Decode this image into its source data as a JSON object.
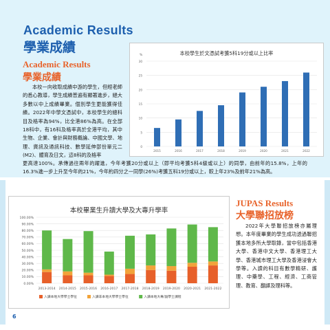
{
  "header": {
    "title_en": "Academic Results",
    "title_zh": "學業成績"
  },
  "academic": {
    "heading_en": "Academic Results",
    "heading_zh": "學業成績",
    "paragraph_top": "本校一向收取成績中游的學生，但經老師的悉心教導，學生成績普遍有顯著進步，絕大多數以中上成績畢業。個別學生更能獲得佳績。2022年中學文憑試中，本校學生的總科目及格率為94%，比全港86%為高。在全部18科中，有16科及格率高於全港平均，其中生物、企業、會計與財務概論、中國文學、地理、資訊及通訊科技、數學延伸部份單元二(M2)、體育及日文，這8科的及格率",
    "paragraph_bottom": "更高達100%。承傳過往兩年的躍進，今年考獲20分或以上（即平均考獲5科4級或以上）的同學，由前年的15.8%，上年的16.3%進一步上升至今年的21%，今年約四分之一同學(26%)考獲五科19分或以上，較上年23%及前年21%為高。"
  },
  "jupas": {
    "heading_en": "JUPAS Results",
    "heading_zh": "大學聯招放榜",
    "paragraph": "2022年大學聯招放榜亦屬理想。本年度畢業的學生成功透過聯招獲本地多所大學取錄，當中包括香港大學、香港中文大學、香港理工大學、香港城市理工大學及香港浸會大學等。入讀的科目有數學精研、護理、中藥學、工程、經濟、工商管理、教育、翻譯及理科等。"
  },
  "page_number": "6",
  "colors": {
    "brand_blue": "#1d5fae",
    "accent_orange": "#e8632b",
    "bar_blue": "#2f6eb5",
    "seg_red": "#e7602a",
    "seg_orange": "#f2a33a",
    "seg_green": "#5fb84a"
  },
  "chart_data": [
    {
      "type": "bar",
      "title": "本校學生於文憑試考獲5科19分或以上比率",
      "ylabel_unit": "%",
      "categories": [
        "2015",
        "2016",
        "2017",
        "2018",
        "2019",
        "2020",
        "2021",
        "2022"
      ],
      "values": [
        6.5,
        9.5,
        12.5,
        14.5,
        19,
        21,
        23,
        26
      ],
      "ylim": [
        0,
        30
      ],
      "yticks": [
        "0",
        "5",
        "10",
        "15",
        "20",
        "25",
        "30"
      ],
      "grid": true
    },
    {
      "type": "bar",
      "stacked": true,
      "title": "本校畢業生升讀大學及大專升學率",
      "categories": [
        "2013-2014",
        "2014-2015",
        "2015-2016",
        "2016-2017",
        "2017-2018",
        "2018-2019",
        "2019-2020",
        "2020-2021",
        "2021-2022"
      ],
      "ylim": [
        0,
        100
      ],
      "yticks": [
        "0.00%",
        "10.00%",
        "20.00%",
        "30.00%",
        "40.00%",
        "50.00%",
        "60.00%",
        "70.00%",
        "80.00%",
        "90.00%",
        "100.00%"
      ],
      "series": [
        {
          "name": "入讀本地大學學士學位",
          "color": "#e7602a",
          "values": [
            17,
            12,
            12,
            11,
            14,
            20,
            19,
            25,
            27
          ]
        },
        {
          "name": "入讀非本地大學學士學位",
          "color": "#f2a33a",
          "values": [
            4,
            6,
            4,
            2,
            8,
            7,
            7,
            6,
            6
          ]
        },
        {
          "name": "入讀本地大專/副學士課程",
          "color": "#5fb84a",
          "values": [
            59,
            49,
            63,
            35,
            50,
            47,
            57,
            58,
            52
          ]
        }
      ],
      "legend": "bottom",
      "grid": true
    }
  ]
}
